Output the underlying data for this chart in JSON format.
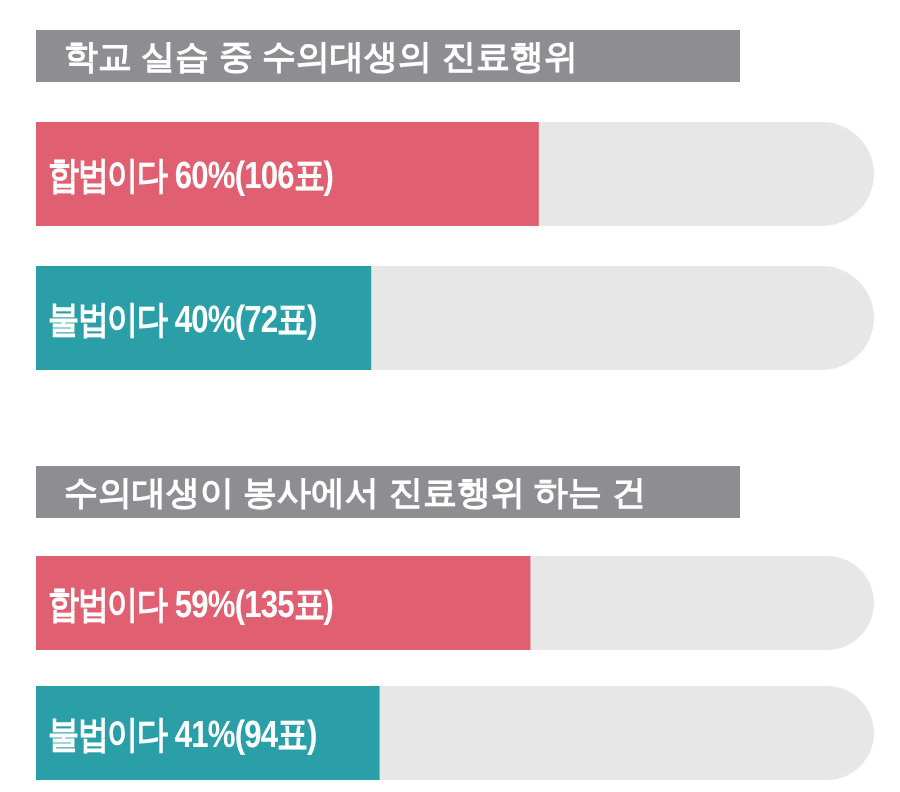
{
  "chart_data": [
    {
      "type": "bar",
      "orientation": "horizontal",
      "title": "학교 실습 중 수의대생의 진료행위",
      "categories": [
        "합법이다",
        "불법이다"
      ],
      "values": [
        60,
        40
      ],
      "colors": [
        "#e05f70",
        "#2a9fa8"
      ],
      "xlim": [
        0,
        100
      ],
      "value_labels": [
        "60%(106표)",
        "40%(72표)"
      ]
    },
    {
      "type": "bar",
      "orientation": "horizontal",
      "title": "수의대생이 봉사에서 진료행위 하는 건",
      "categories": [
        "합법이다",
        "불법이다"
      ],
      "values": [
        59,
        41
      ],
      "colors": [
        "#e05f70",
        "#2a9fa8"
      ],
      "xlim": [
        0,
        100
      ],
      "value_labels": [
        "59%(135표)",
        "41%(94표)"
      ]
    }
  ]
}
